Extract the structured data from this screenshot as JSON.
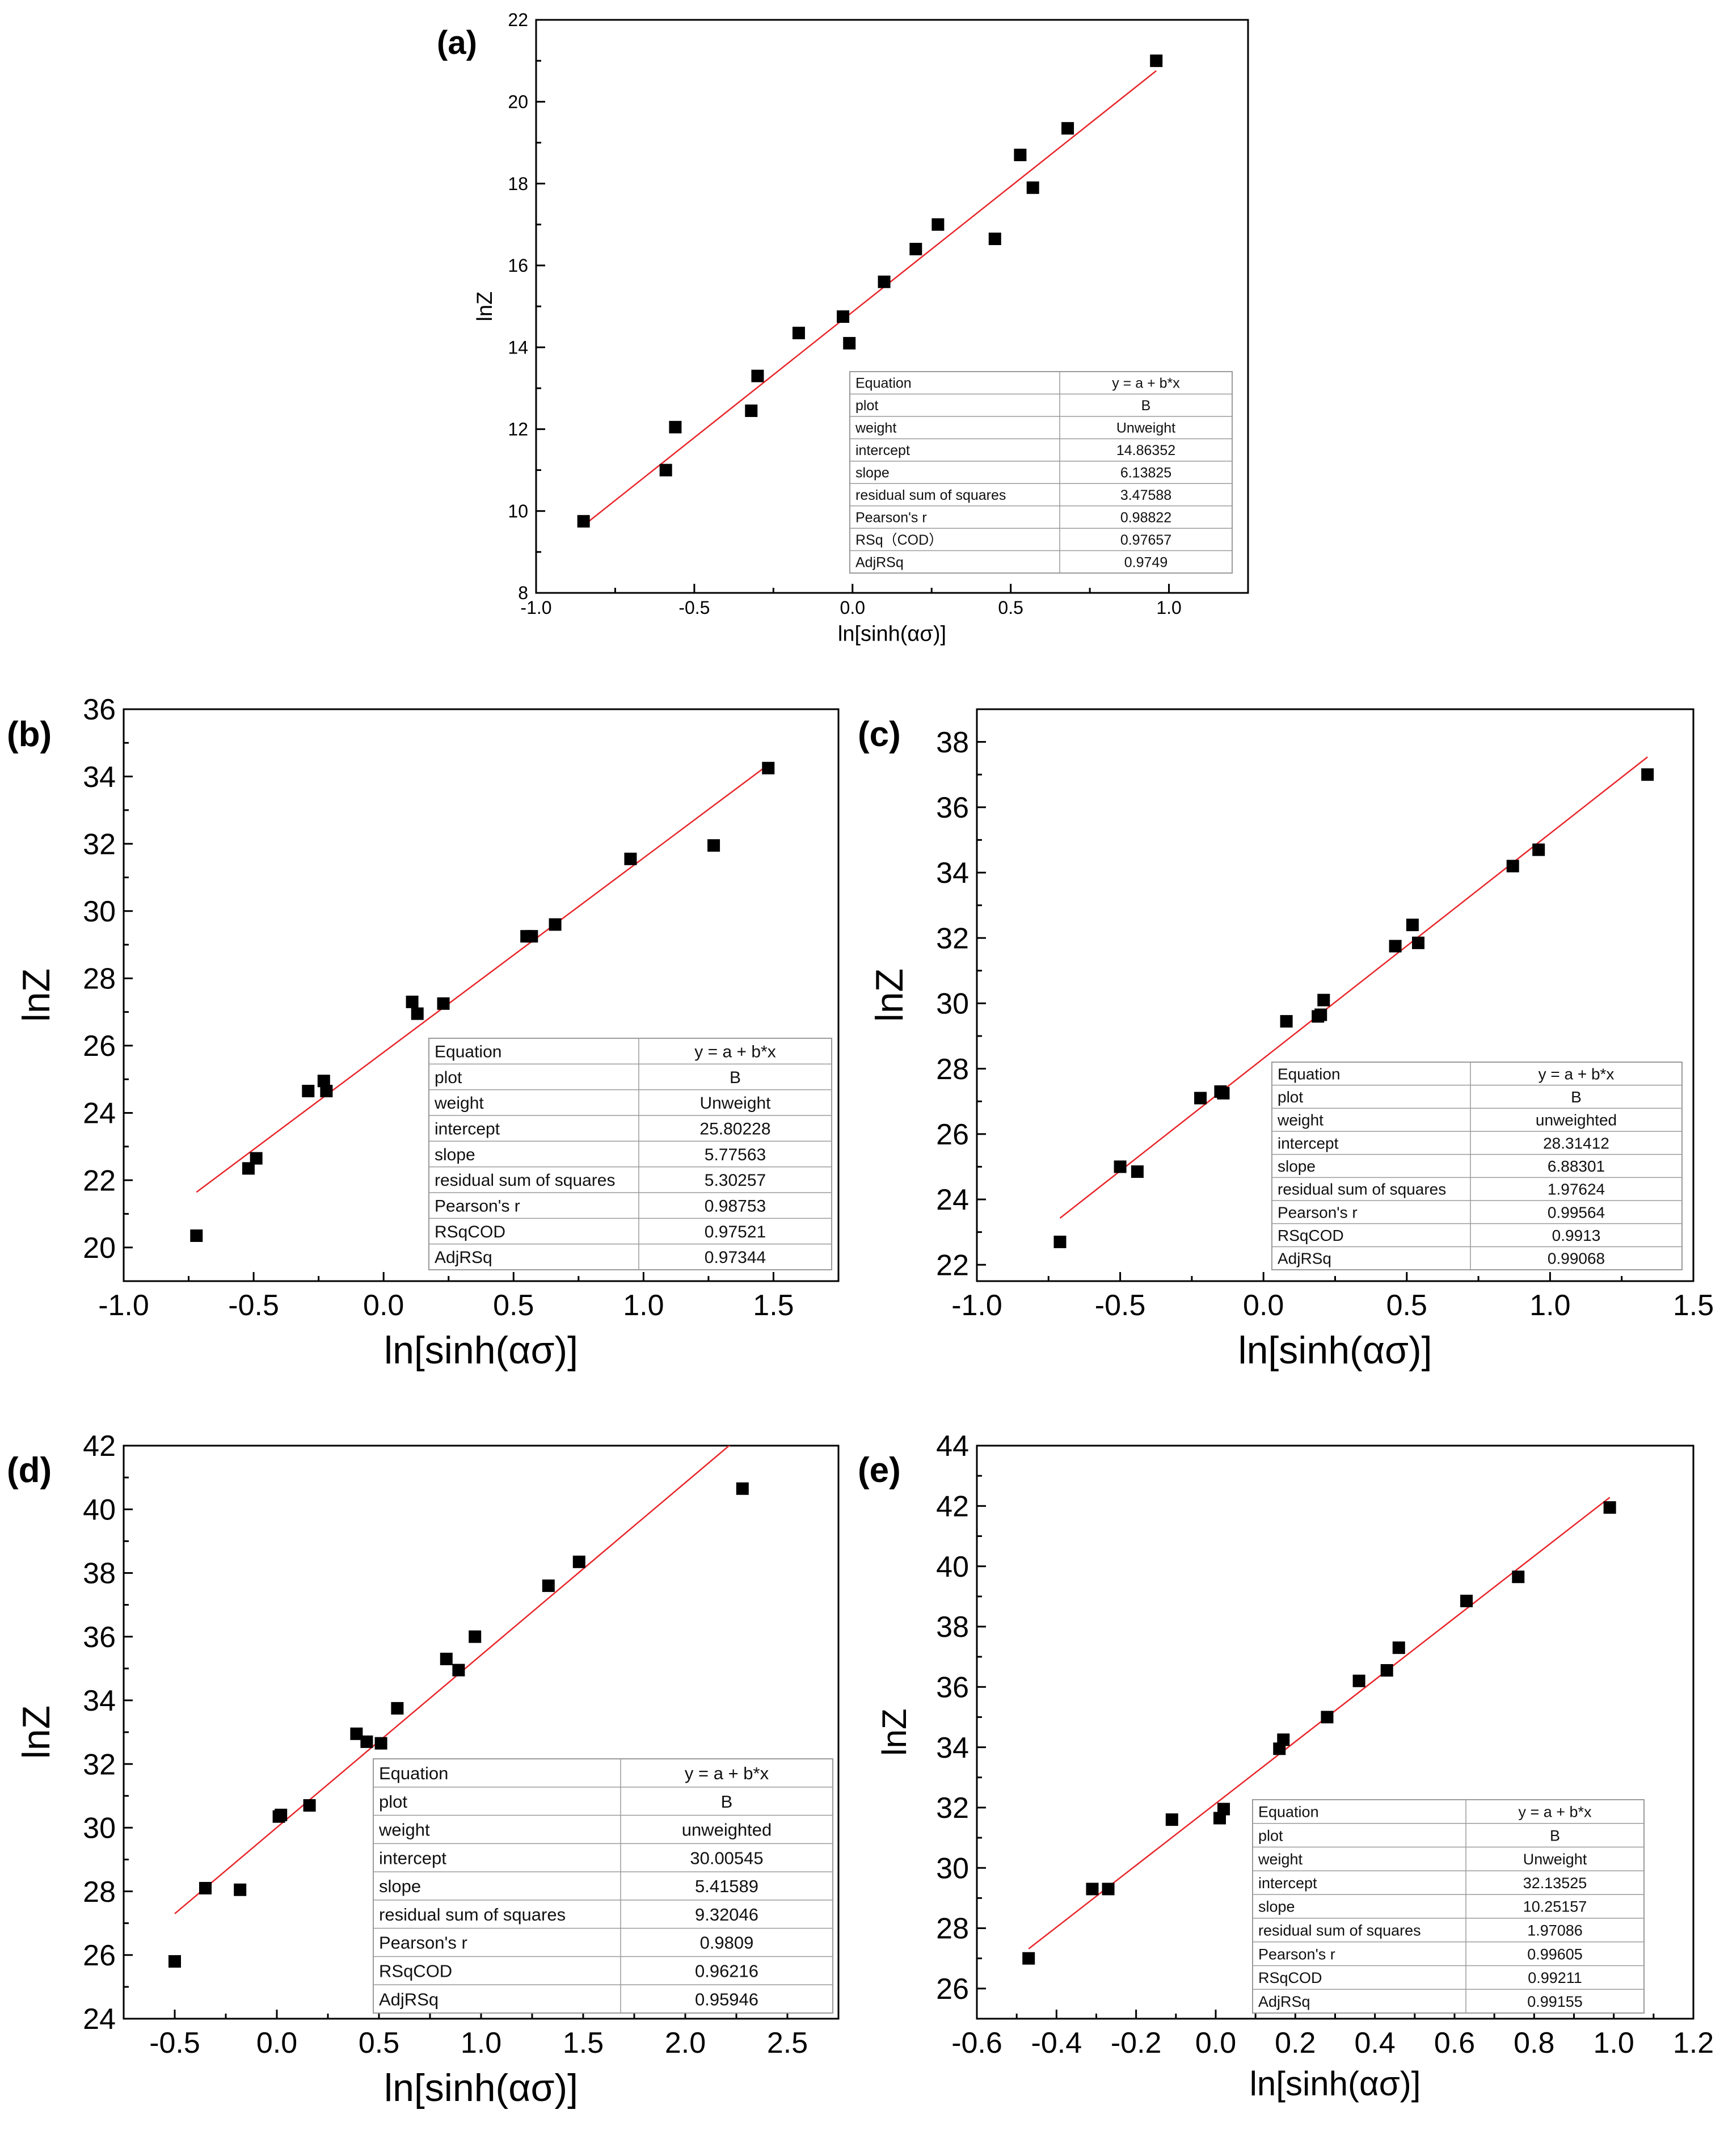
{
  "chart_data": [
    {
      "id": "a",
      "type": "scatter",
      "panel_label": "(a)",
      "xlabel": "ln[sinh(ασ)]",
      "ylabel": "lnZ",
      "xlim": [
        -1.0,
        1.25
      ],
      "ylim": [
        8,
        22
      ],
      "xticks": [
        -1.0,
        -0.5,
        0.0,
        0.5,
        1.0
      ],
      "xtick_labels": [
        "-1.0",
        "-0.5",
        "0.0",
        "0.5",
        "1.0"
      ],
      "yticks": [
        8,
        10,
        12,
        14,
        16,
        18,
        20,
        22
      ],
      "ytick_labels": [
        "8",
        "10",
        "12",
        "14",
        "16",
        "18",
        "20",
        "22"
      ],
      "points": {
        "x": [
          -0.85,
          -0.59,
          -0.56,
          -0.32,
          -0.3,
          -0.17,
          -0.03,
          -0.01,
          0.1,
          0.2,
          0.27,
          0.45,
          0.53,
          0.57,
          0.68,
          0.96
        ],
        "y": [
          9.75,
          11.0,
          12.05,
          12.45,
          13.3,
          14.35,
          14.75,
          14.1,
          15.6,
          16.4,
          17.0,
          16.65,
          18.7,
          17.9,
          19.35,
          21.0
        ]
      },
      "fit_line": {
        "intercept": 14.86352,
        "slope": 6.13825,
        "x_range": [
          -0.85,
          0.96
        ]
      },
      "stats_table": [
        [
          "Equation",
          "y = a + b*x"
        ],
        [
          "plot",
          "B"
        ],
        [
          "weight",
          "Unweight"
        ],
        [
          "intercept",
          "14.86352"
        ],
        [
          "slope",
          "6.13825"
        ],
        [
          " residual sum of squares",
          "3.47588"
        ],
        [
          "Pearson's r",
          "0.98822"
        ],
        [
          "RSq（COD）",
          "0.97657"
        ],
        [
          "AdjRSq",
          "0.9749"
        ]
      ]
    },
    {
      "id": "b",
      "type": "scatter",
      "panel_label": "(b)",
      "xlabel": "ln[sinh(ασ)]",
      "ylabel": "lnZ",
      "xlim": [
        -1.0,
        1.75
      ],
      "ylim": [
        19,
        36
      ],
      "xticks": [
        -1.0,
        -0.5,
        0.0,
        0.5,
        1.0,
        1.5
      ],
      "xtick_labels": [
        "-1.0",
        "-0.5",
        "0.0",
        "0.5",
        "1.0",
        "1.5"
      ],
      "yticks": [
        20,
        22,
        24,
        26,
        28,
        30,
        32,
        34,
        36
      ],
      "ytick_labels": [
        "20",
        "22",
        "24",
        "26",
        "28",
        "30",
        "32",
        "34",
        "36"
      ],
      "points": {
        "x": [
          -0.72,
          -0.52,
          -0.49,
          -0.29,
          -0.23,
          -0.22,
          0.11,
          0.13,
          0.23,
          0.55,
          0.57,
          0.66,
          0.95,
          1.27,
          1.48
        ],
        "y": [
          20.35,
          22.35,
          22.65,
          24.65,
          24.95,
          24.65,
          27.3,
          26.95,
          27.25,
          29.25,
          29.25,
          29.6,
          31.55,
          31.95,
          34.25
        ]
      },
      "fit_line": {
        "intercept": 25.80228,
        "slope": 5.77563,
        "x_range": [
          -0.72,
          1.48
        ]
      },
      "stats_table": [
        [
          "Equation",
          "y = a + b*x"
        ],
        [
          "plot",
          "B"
        ],
        [
          "weight",
          "Unweight"
        ],
        [
          "intercept",
          "25.80228"
        ],
        [
          "slope",
          "5.77563"
        ],
        [
          "residual sum of squares",
          "5.30257"
        ],
        [
          "Pearson's r",
          "0.98753"
        ],
        [
          "RSqCOD",
          "0.97521"
        ],
        [
          "AdjRSq",
          "0.97344"
        ]
      ]
    },
    {
      "id": "c",
      "type": "scatter",
      "panel_label": "(c)",
      "xlabel": "ln[sinh(ασ)]",
      "ylabel": "lnZ",
      "xlim": [
        -1.0,
        1.5
      ],
      "ylim": [
        21.5,
        39
      ],
      "xticks": [
        -1.0,
        -0.5,
        0.0,
        0.5,
        1.0,
        1.5
      ],
      "xtick_labels": [
        "-1.0",
        "-0.5",
        "0.0",
        "0.5",
        "1.0",
        "1.5"
      ],
      "yticks": [
        22,
        24,
        26,
        28,
        30,
        32,
        34,
        36,
        38
      ],
      "ytick_labels": [
        "22",
        "24",
        "26",
        "28",
        "30",
        "32",
        "34",
        "36",
        "38"
      ],
      "points": {
        "x": [
          -0.71,
          -0.5,
          -0.44,
          -0.22,
          -0.15,
          -0.14,
          0.08,
          0.19,
          0.2,
          0.21,
          0.46,
          0.52,
          0.54,
          0.87,
          0.96,
          1.34
        ],
        "y": [
          22.7,
          25.0,
          24.85,
          27.1,
          27.3,
          27.25,
          29.45,
          29.6,
          29.65,
          30.1,
          31.75,
          32.4,
          31.85,
          34.2,
          34.7,
          37.0
        ]
      },
      "fit_line": {
        "intercept": 28.31412,
        "slope": 6.88301,
        "x_range": [
          -0.71,
          1.34
        ]
      },
      "stats_table": [
        [
          "Equation",
          "y = a + b*x"
        ],
        [
          "plot",
          "B"
        ],
        [
          "weight",
          "unweighted"
        ],
        [
          "intercept",
          "28.31412"
        ],
        [
          "slope",
          "6.88301"
        ],
        [
          "residual sum of squares",
          "1.97624"
        ],
        [
          "Pearson's r",
          "0.99564"
        ],
        [
          "RSqCOD",
          "0.9913"
        ],
        [
          "AdjRSq",
          "0.99068"
        ]
      ]
    },
    {
      "id": "d",
      "type": "scatter",
      "panel_label": "(d)",
      "xlabel": "ln[sinh(ασ)]",
      "ylabel": "lnZ",
      "xlim": [
        -0.75,
        2.75
      ],
      "ylim": [
        24,
        42
      ],
      "xticks": [
        -0.5,
        0.0,
        0.5,
        1.0,
        1.5,
        2.0,
        2.5
      ],
      "xtick_labels": [
        "-0.5",
        "0.0",
        "0.5",
        "1.0",
        "1.5",
        "2.0",
        "2.5"
      ],
      "yticks": [
        24,
        26,
        28,
        30,
        32,
        34,
        36,
        38,
        40,
        42
      ],
      "ytick_labels": [
        "24",
        "26",
        "28",
        "30",
        "32",
        "34",
        "36",
        "38",
        "40",
        "42"
      ],
      "points": {
        "x": [
          -0.5,
          -0.35,
          -0.18,
          0.01,
          0.02,
          0.16,
          0.39,
          0.44,
          0.51,
          0.59,
          0.83,
          0.89,
          0.97,
          1.33,
          1.48,
          2.28
        ],
        "y": [
          25.8,
          28.1,
          28.05,
          30.35,
          30.4,
          30.7,
          32.95,
          32.7,
          32.65,
          33.75,
          35.3,
          34.95,
          36.0,
          37.6,
          38.35,
          40.65
        ]
      },
      "fit_line": {
        "intercept": 30.00545,
        "slope": 5.41589,
        "x_range": [
          -0.5,
          2.22
        ]
      },
      "stats_table": [
        [
          "Equation",
          "y = a + b*x"
        ],
        [
          "plot",
          "B"
        ],
        [
          "weight",
          "unweighted"
        ],
        [
          "intercept",
          "30.00545"
        ],
        [
          "slope",
          "5.41589"
        ],
        [
          "residual sum of squares",
          "9.32046"
        ],
        [
          "Pearson's r",
          "0.9809"
        ],
        [
          "RSqCOD",
          "0.96216"
        ],
        [
          "AdjRSq",
          "0.95946"
        ]
      ]
    },
    {
      "id": "e",
      "type": "scatter",
      "panel_label": "(e)",
      "xlabel": "ln[sinh(ασ)]",
      "ylabel": "lnZ",
      "xlim": [
        -0.6,
        1.2
      ],
      "ylim": [
        25,
        44
      ],
      "xticks": [
        -0.6,
        -0.4,
        -0.2,
        0.0,
        0.2,
        0.4,
        0.6,
        0.8,
        1.0,
        1.2
      ],
      "xtick_labels": [
        "-0.6",
        "-0.4",
        "-0.2",
        "0.0",
        "0.2",
        "0.4",
        "0.6",
        "0.8",
        "1.0",
        "1.2"
      ],
      "yticks": [
        26,
        28,
        30,
        32,
        34,
        36,
        38,
        40,
        42,
        44
      ],
      "ytick_labels": [
        "26",
        "28",
        "30",
        "32",
        "34",
        "36",
        "38",
        "40",
        "42",
        "44"
      ],
      "points": {
        "x": [
          -0.47,
          -0.31,
          -0.27,
          -0.11,
          0.01,
          0.02,
          0.16,
          0.17,
          0.28,
          0.36,
          0.43,
          0.46,
          0.63,
          0.76,
          0.99
        ],
        "y": [
          27.0,
          29.3,
          29.3,
          31.6,
          31.65,
          31.95,
          33.95,
          34.25,
          35.0,
          36.2,
          36.55,
          37.3,
          38.85,
          39.65,
          41.95
        ]
      },
      "fit_line": {
        "intercept": 32.13525,
        "slope": 10.25157,
        "x_range": [
          -0.47,
          0.99
        ]
      },
      "stats_table": [
        [
          "Equation",
          "y = a + b*x"
        ],
        [
          "plot",
          "B"
        ],
        [
          "weight",
          "Unweight"
        ],
        [
          "intercept",
          "32.13525"
        ],
        [
          "slope",
          "10.25157"
        ],
        [
          "residual sum of squares",
          "1.97086"
        ],
        [
          "Pearson's r",
          "0.99605"
        ],
        [
          "RSqCOD",
          "0.99211"
        ],
        [
          "AdjRSq",
          "0.99155"
        ]
      ]
    }
  ],
  "colors": {
    "axis": "#000000",
    "points": "#000000",
    "fit_line": "#e8262a",
    "table_border": "#9a9a9a",
    "background": "#ffffff"
  }
}
